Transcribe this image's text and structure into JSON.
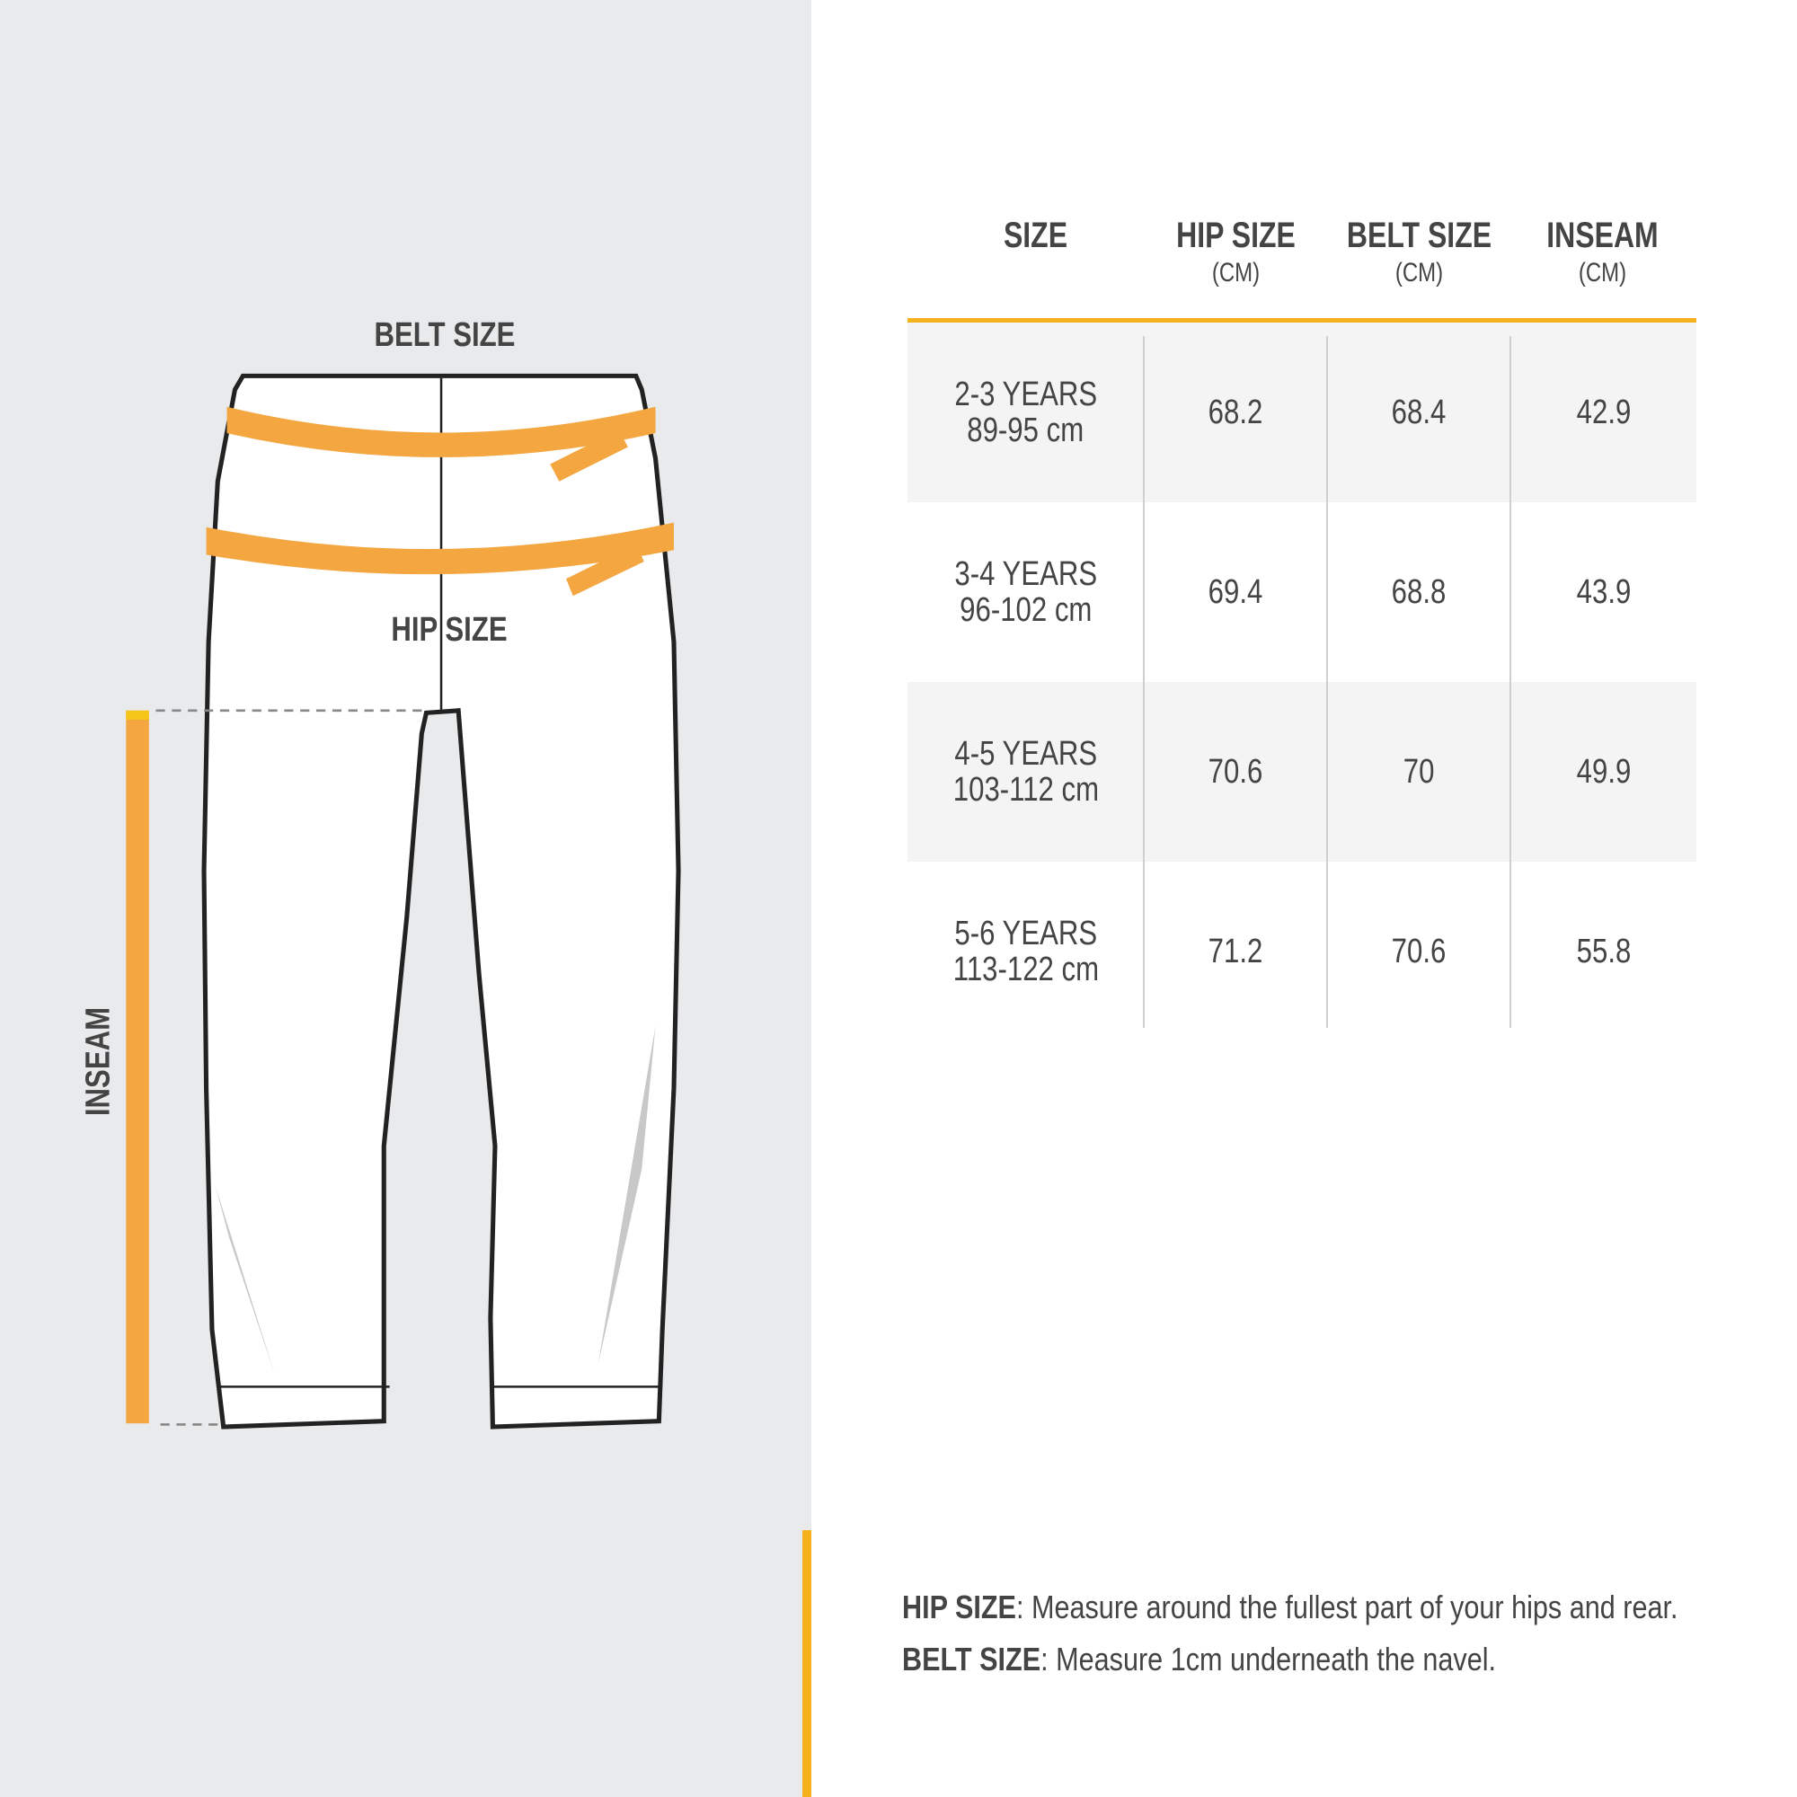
{
  "diagram": {
    "belt_label": "BELT SIZE",
    "hip_label": "HIP SIZE",
    "inseam_label": "INSEAM"
  },
  "table": {
    "headers": [
      {
        "title": "SIZE",
        "unit": ""
      },
      {
        "title": "HIP SIZE",
        "unit": "(CM)"
      },
      {
        "title": "BELT SIZE",
        "unit": "(CM)"
      },
      {
        "title": "INSEAM",
        "unit": "(CM)"
      }
    ],
    "rows": [
      {
        "age": "2-3 YEARS",
        "height": "89-95 cm",
        "hip": "68.2",
        "belt": "68.4",
        "inseam": "42.9"
      },
      {
        "age": "3-4 YEARS",
        "height": "96-102 cm",
        "hip": "69.4",
        "belt": "68.8",
        "inseam": "43.9"
      },
      {
        "age": "4-5 YEARS",
        "height": "103-112 cm",
        "hip": "70.6",
        "belt": "70",
        "inseam": "49.9"
      },
      {
        "age": "5-6 YEARS",
        "height": "113-122 cm",
        "hip": "71.2",
        "belt": "70.6",
        "inseam": "55.8"
      }
    ]
  },
  "notes": [
    {
      "term": "HIP SIZE",
      "text": ": Measure around the fullest part of your hips and rear."
    },
    {
      "term": "BELT SIZE",
      "text": ": Measure 1cm underneath the navel."
    }
  ],
  "colors": {
    "accent": "#f5b21e",
    "tape": "#f4a640",
    "panel": "#e9eaec",
    "row_shade": "#f4f4f4",
    "text": "#444444"
  }
}
